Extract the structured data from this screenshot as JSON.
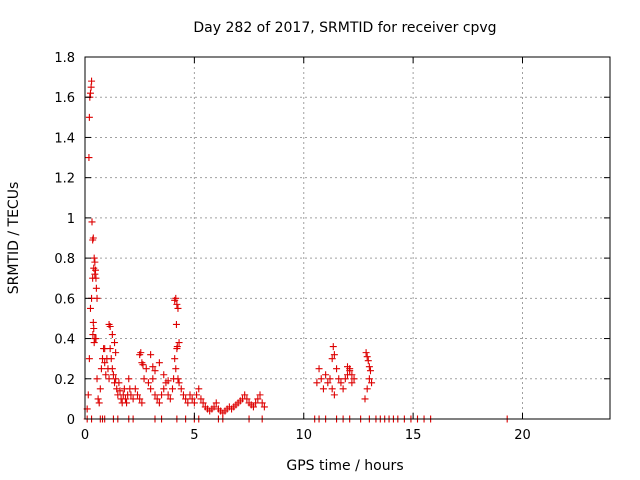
{
  "chart_data": {
    "type": "scatter",
    "title": "Day 282 of 2017, SRMTID for receiver cpvg",
    "xlabel": "GPS time / hours",
    "ylabel": "SRMTID / TECUs",
    "xlim": [
      0,
      24
    ],
    "ylim": [
      0,
      1.8
    ],
    "xticks": [
      0,
      5,
      10,
      15,
      20
    ],
    "yticks": [
      0,
      0.2,
      0.4,
      0.6,
      0.8,
      1,
      1.2,
      1.4,
      1.6,
      1.8
    ],
    "ytick_labels": [
      "0",
      "0.2",
      "0.4",
      "0.6",
      "0.8",
      "1",
      "1.2",
      "1.4",
      "1.6",
      "1.8"
    ],
    "grid": true,
    "marker": "+",
    "color": "#dd0000",
    "series": [
      {
        "name": "SRMTID",
        "x": [
          0.1,
          0.15,
          0.2,
          0.25,
          0.3,
          0.35,
          0.4,
          0.45,
          0.5,
          0.55,
          0.6,
          0.65,
          0.7,
          0.75,
          0.8,
          0.85,
          0.9,
          0.95,
          1.0,
          1.05,
          1.1,
          1.15,
          1.2,
          1.25,
          1.3,
          1.35,
          1.4,
          1.45,
          1.5,
          1.55,
          1.6,
          1.65,
          1.7,
          1.75,
          1.8,
          1.85,
          1.9,
          1.95,
          2.0,
          2.05,
          2.1,
          2.2,
          2.3,
          2.4,
          2.5,
          2.6,
          2.7,
          2.8,
          2.9,
          3.0,
          3.1,
          3.2,
          3.3,
          3.4,
          3.5,
          3.6,
          3.7,
          3.8,
          3.9,
          4.0,
          4.05,
          4.1,
          4.15,
          4.2,
          4.25,
          4.3,
          4.4,
          4.5,
          4.6,
          4.7,
          4.8,
          4.9,
          5.0,
          5.1,
          5.2,
          5.3,
          5.4,
          5.5,
          5.6,
          5.7,
          5.8,
          5.9,
          6.0,
          6.1,
          6.2,
          6.3,
          6.4,
          6.5,
          6.6,
          6.7,
          6.8,
          6.9,
          7.0,
          7.1,
          7.2,
          7.3,
          7.4,
          7.5,
          7.6,
          7.7,
          7.8,
          7.9,
          8.0,
          8.1,
          8.2,
          10.6,
          10.7,
          10.8,
          10.9,
          11.0,
          11.1,
          11.2,
          11.3,
          11.4,
          11.5,
          11.6,
          11.7,
          11.8,
          11.9,
          12.0,
          12.1,
          12.2,
          12.3,
          12.8,
          12.9,
          13.0,
          13.1,
          0.18,
          0.2,
          0.22,
          0.25,
          0.28,
          0.3,
          0.32,
          0.35,
          0.38,
          0.42,
          0.45,
          0.48,
          0.5,
          0.52,
          0.55,
          0.4,
          0.45,
          0.42,
          0.38,
          0.36,
          0.9,
          1.1,
          1.15,
          1.25,
          1.35,
          1.4,
          4.1,
          4.15,
          4.2,
          4.25,
          4.3,
          4.18,
          4.22,
          2.5,
          2.55,
          2.6,
          2.65,
          3.0,
          3.1,
          3.2,
          3.4,
          3.6,
          3.8,
          11.3,
          11.35,
          11.4,
          12.0,
          12.1,
          12.2,
          12.85,
          12.9,
          12.95,
          13.0,
          13.05,
          0.1,
          0.3,
          0.7,
          0.8,
          0.9,
          1.3,
          1.5,
          2.0,
          2.2,
          3.2,
          3.5,
          4.2,
          4.6,
          5.0,
          5.2,
          6.1,
          6.3,
          7.5,
          8.1,
          10.5,
          10.7,
          11.0,
          11.5,
          11.8,
          12.1,
          12.6,
          13.0,
          13.3,
          13.5,
          13.7,
          13.9,
          14.1,
          14.3,
          14.6,
          14.9,
          15.2,
          15.5,
          15.8,
          19.3
        ],
        "y": [
          0.05,
          0.12,
          0.3,
          0.55,
          0.6,
          0.7,
          0.75,
          0.72,
          0.4,
          0.2,
          0.1,
          0.08,
          0.15,
          0.25,
          0.3,
          0.35,
          0.28,
          0.22,
          0.3,
          0.25,
          0.2,
          0.35,
          0.3,
          0.25,
          0.22,
          0.18,
          0.2,
          0.15,
          0.12,
          0.18,
          0.14,
          0.1,
          0.08,
          0.12,
          0.15,
          0.1,
          0.08,
          0.12,
          0.2,
          0.15,
          0.12,
          0.1,
          0.15,
          0.12,
          0.1,
          0.08,
          0.2,
          0.25,
          0.18,
          0.15,
          0.2,
          0.12,
          0.1,
          0.08,
          0.12,
          0.15,
          0.18,
          0.12,
          0.1,
          0.15,
          0.2,
          0.3,
          0.25,
          0.35,
          0.2,
          0.18,
          0.15,
          0.12,
          0.1,
          0.08,
          0.12,
          0.1,
          0.08,
          0.12,
          0.15,
          0.1,
          0.08,
          0.06,
          0.05,
          0.04,
          0.05,
          0.06,
          0.08,
          0.05,
          0.04,
          0.03,
          0.04,
          0.05,
          0.06,
          0.05,
          0.06,
          0.07,
          0.08,
          0.09,
          0.1,
          0.12,
          0.1,
          0.08,
          0.07,
          0.06,
          0.08,
          0.1,
          0.12,
          0.08,
          0.06,
          0.18,
          0.25,
          0.2,
          0.15,
          0.22,
          0.18,
          0.2,
          0.15,
          0.12,
          0.25,
          0.2,
          0.18,
          0.15,
          0.2,
          0.22,
          0.25,
          0.18,
          0.2,
          0.1,
          0.15,
          0.2,
          0.18,
          1.3,
          1.5,
          1.6,
          1.62,
          1.65,
          1.68,
          0.98,
          0.89,
          0.9,
          0.8,
          0.78,
          0.74,
          0.7,
          0.65,
          0.6,
          0.45,
          0.4,
          0.38,
          0.48,
          0.42,
          0.35,
          0.47,
          0.46,
          0.42,
          0.38,
          0.33,
          0.59,
          0.6,
          0.57,
          0.55,
          0.38,
          0.47,
          0.36,
          0.32,
          0.33,
          0.28,
          0.27,
          0.32,
          0.26,
          0.24,
          0.28,
          0.22,
          0.19,
          0.3,
          0.36,
          0.32,
          0.26,
          0.24,
          0.22,
          0.33,
          0.31,
          0.29,
          0.26,
          0.24,
          0,
          0,
          0,
          0,
          0,
          0,
          0,
          0,
          0,
          0,
          0,
          0,
          0,
          0,
          0,
          0,
          0,
          0,
          0,
          0,
          0,
          0,
          0,
          0,
          0,
          0,
          0,
          0,
          0,
          0,
          0,
          0,
          0,
          0,
          0,
          0,
          0,
          0,
          0
        ]
      }
    ]
  }
}
